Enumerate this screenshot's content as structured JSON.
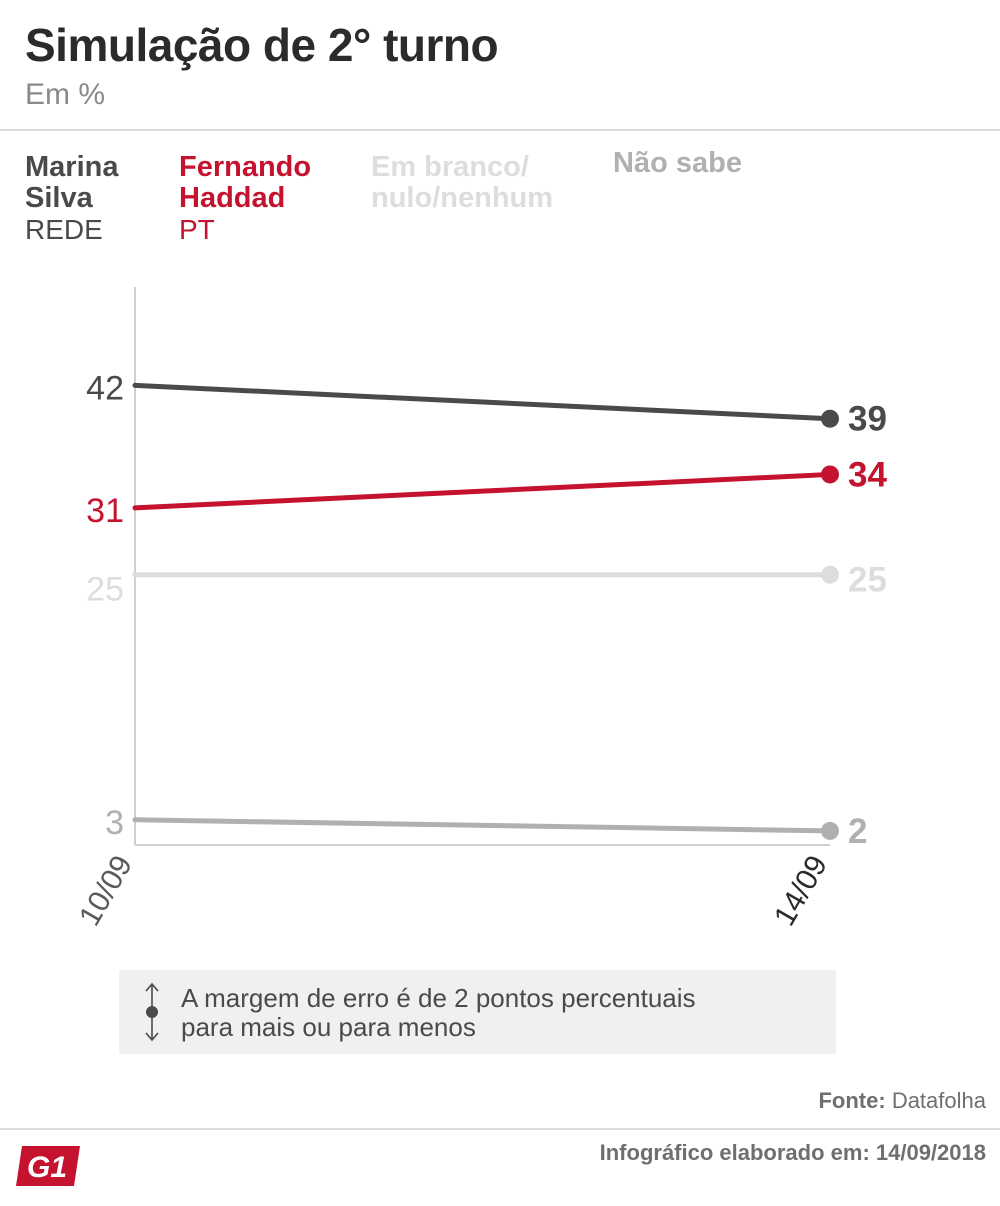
{
  "header": {
    "title": "Simulação de 2° turno",
    "subtitle": "Em %"
  },
  "legend": [
    {
      "name_line1": "Marina",
      "name_line2": "Silva",
      "party": "REDE",
      "color": "#4a4a4a"
    },
    {
      "name_line1": "Fernando",
      "name_line2": "Haddad",
      "party": "PT",
      "color": "#c4122f"
    },
    {
      "name_line1": "Em branco/",
      "name_line2": "nulo/nenhum",
      "party": "",
      "color": "#dddddd"
    },
    {
      "name_line1": "Não sabe",
      "name_line2": "",
      "party": "",
      "color": "#b0b0b0"
    }
  ],
  "chart_data": {
    "type": "line",
    "x": [
      "10/09",
      "14/09"
    ],
    "ylim": [
      0,
      50
    ],
    "grid": false,
    "legend_position": "top",
    "series": [
      {
        "name": "Marina Silva",
        "values": [
          42,
          39
        ],
        "color": "#4a4a4a"
      },
      {
        "name": "Fernando Haddad",
        "values": [
          31,
          34
        ],
        "color": "#c4122f"
      },
      {
        "name": "Em branco/nulo/nenhum",
        "values": [
          25,
          25
        ],
        "color": "#dddddd"
      },
      {
        "name": "Não sabe",
        "values": [
          3,
          2
        ],
        "color": "#b0b0b0"
      }
    ]
  },
  "note": {
    "line1": "A margem de erro é de 2 pontos percentuais",
    "line2": "para mais ou para menos",
    "icon": "margin-of-error-icon"
  },
  "footer": {
    "source_label": "Fonte:",
    "source_value": "Datafolha",
    "credit": "Infográfico elaborado em: 14/09/2018",
    "logo_text": "G1",
    "logo_color": "#c4122f"
  }
}
